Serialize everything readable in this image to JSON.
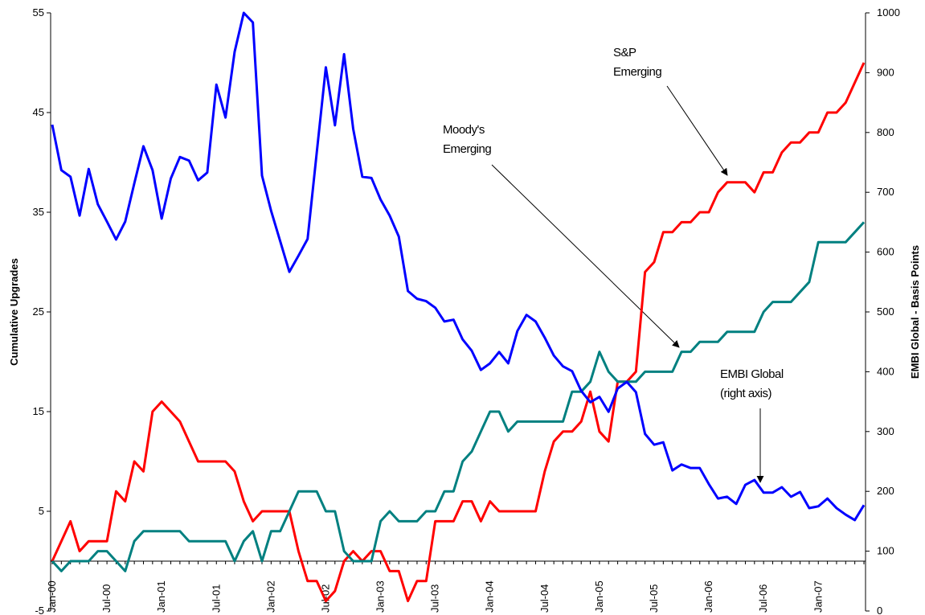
{
  "chart_data": {
    "type": "line",
    "categories": [
      "Jan-00",
      null,
      null,
      null,
      null,
      null,
      "Jul-00",
      null,
      null,
      null,
      null,
      null,
      "Jan-01",
      null,
      null,
      null,
      null,
      null,
      "Jul-01",
      null,
      null,
      null,
      null,
      null,
      "Jan-02",
      null,
      null,
      null,
      null,
      null,
      "Jul-02",
      null,
      null,
      null,
      null,
      null,
      "Jan-03",
      null,
      null,
      null,
      null,
      null,
      "Jul-03",
      null,
      null,
      null,
      null,
      null,
      "Jan-04",
      null,
      null,
      null,
      null,
      null,
      "Jul-04",
      null,
      null,
      null,
      null,
      null,
      "Jan-05",
      null,
      null,
      null,
      null,
      null,
      "Jul-05",
      null,
      null,
      null,
      null,
      null,
      "Jan-06",
      null,
      null,
      null,
      null,
      null,
      "Jul-06",
      null,
      null,
      null,
      null,
      null,
      "Jan-07",
      null,
      null,
      null,
      null,
      null
    ],
    "series": [
      {
        "color": "#ff0000",
        "values": [
          0,
          2,
          4,
          1,
          2,
          2,
          2,
          7,
          6,
          10,
          9,
          15,
          16,
          15,
          14,
          12,
          10,
          10,
          10,
          10,
          9,
          6,
          4,
          5,
          5,
          5,
          5,
          1,
          -2,
          -2,
          -4,
          -3,
          0,
          1,
          0,
          1,
          1,
          -1,
          -1,
          -4,
          -2,
          -2,
          4,
          4,
          4,
          6,
          6,
          4,
          6,
          5,
          5,
          5,
          5,
          5,
          9,
          12,
          13,
          13,
          14,
          17,
          13,
          12,
          18,
          18,
          19,
          29,
          30,
          33,
          33,
          34,
          34,
          35,
          35,
          37,
          38,
          38,
          38,
          37,
          39,
          39,
          41,
          42,
          42,
          43,
          43,
          45,
          45,
          46,
          48,
          50
        ]
      },
      {
        "color": "#008080",
        "values": [
          0,
          -1,
          0,
          0,
          0,
          1,
          1,
          0,
          -1,
          2,
          3,
          3,
          3,
          3,
          3,
          2,
          2,
          2,
          2,
          2,
          0,
          2,
          3,
          0,
          3,
          3,
          5,
          7,
          7,
          7,
          5,
          5,
          1,
          0,
          0,
          0,
          4,
          5,
          4,
          4,
          4,
          5,
          5,
          7,
          7,
          10,
          11,
          13,
          15,
          15,
          13,
          14,
          14,
          14,
          14,
          14,
          14,
          17,
          17,
          18,
          21,
          19,
          18,
          18,
          18,
          19,
          19,
          19,
          19,
          21,
          21,
          22,
          22,
          22,
          23,
          23,
          23,
          23,
          25,
          26,
          26,
          26,
          27,
          28,
          32,
          32,
          32,
          32,
          33,
          34
        ]
      },
      {
        "color": "#0000ff",
        "axis": "y2",
        "values": [
          813,
          737,
          726,
          661,
          739,
          680,
          651,
          621,
          651,
          715,
          777,
          737,
          656,
          723,
          759,
          753,
          720,
          733,
          880,
          825,
          935,
          1000,
          984,
          728,
          669,
          618,
          567,
          594,
          622,
          766,
          909,
          812,
          931,
          806,
          726,
          724,
          688,
          661,
          626,
          535,
          522,
          518,
          507,
          484,
          487,
          454,
          435,
          403,
          414,
          433,
          414,
          468,
          495,
          484,
          457,
          427,
          409,
          401,
          368,
          349,
          358,
          333,
          372,
          383,
          366,
          296,
          278,
          282,
          235,
          245,
          239,
          239,
          212,
          188,
          191,
          179,
          211,
          219,
          198,
          198,
          207,
          191,
          199,
          172,
          175,
          188,
          172,
          161,
          152,
          177
        ]
      }
    ],
    "ylim": [
      -5,
      55
    ],
    "yticks": [
      -5,
      5,
      15,
      25,
      35,
      45,
      55
    ],
    "y2lim": [
      0,
      1000
    ],
    "y2ticks": [
      0,
      100,
      200,
      300,
      400,
      500,
      600,
      700,
      800,
      900,
      1000
    ],
    "ylabel": "Cumulative Upgrades",
    "y2label": "EMBI Global - Basis Points",
    "annotations": [
      {
        "lines": [
          "S&P",
          "Emerging"
        ]
      },
      {
        "lines": [
          "Moody's",
          "Emerging"
        ]
      },
      {
        "lines": [
          "EMBI Global",
          "(right axis)"
        ]
      }
    ],
    "grid": false
  }
}
